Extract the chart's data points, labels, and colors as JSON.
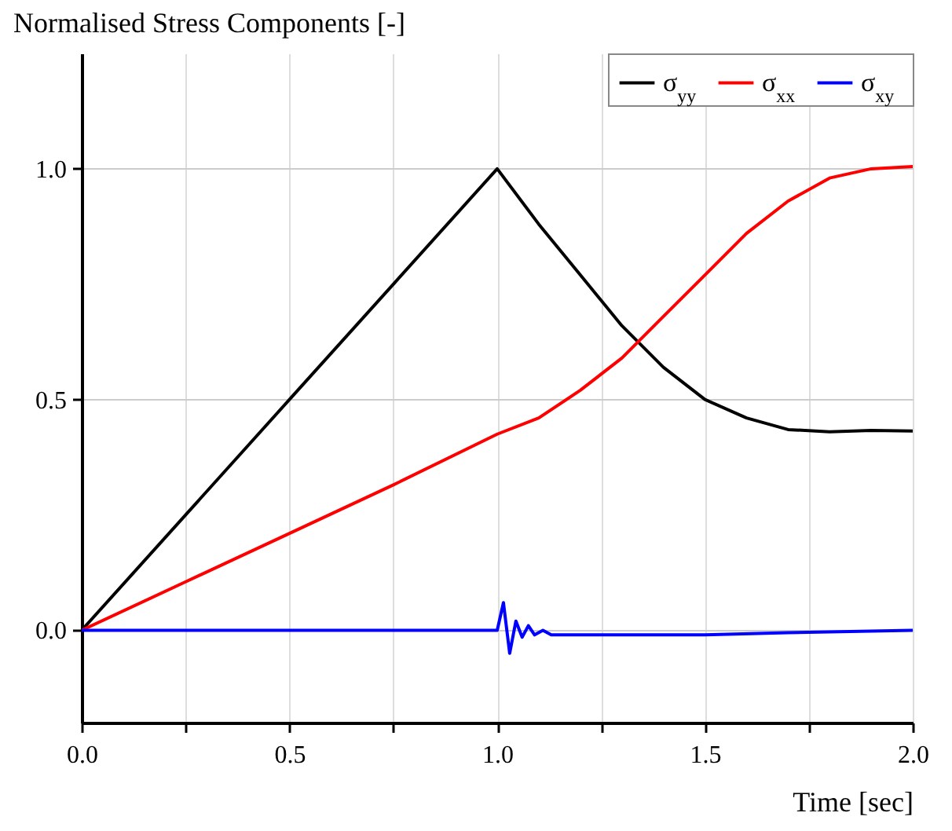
{
  "chart_data": {
    "type": "line",
    "xlabel": "Time [sec]",
    "ylabel": "Normalised Stress Components [-]",
    "xlim": [
      0,
      2
    ],
    "ylim": [
      -0.2,
      1.25
    ],
    "xticks": [
      {
        "value": 0,
        "label": "0.0"
      },
      {
        "value": 0.25,
        "label": null
      },
      {
        "value": 0.5,
        "label": "0.5"
      },
      {
        "value": 0.75,
        "label": null
      },
      {
        "value": 1,
        "label": "1.0"
      },
      {
        "value": 1.25,
        "label": null
      },
      {
        "value": 1.5,
        "label": "1.5"
      },
      {
        "value": 1.75,
        "label": null
      },
      {
        "value": 2,
        "label": "2.0"
      }
    ],
    "yticks": [
      {
        "value": 0,
        "label": "0.0"
      },
      {
        "value": 0.5,
        "label": "0.5"
      },
      {
        "value": 1,
        "label": "1.0"
      }
    ],
    "grid": true,
    "legend": "top right",
    "marker": "none",
    "line_style": "solid",
    "series": [
      {
        "name": "σ$_{yy}$",
        "color": "#000000",
        "x": [
          0,
          0.25,
          0.5,
          0.75,
          1.0,
          1.1,
          1.2,
          1.3,
          1.4,
          1.5,
          1.6,
          1.7,
          1.8,
          1.9,
          2.0
        ],
        "values": [
          0,
          0.25,
          0.5,
          0.75,
          1.0,
          0.88,
          0.77,
          0.66,
          0.57,
          0.5,
          0.46,
          0.435,
          0.43,
          0.433,
          0.432
        ]
      },
      {
        "name": "σ$_{xx}$",
        "color": "#ff0000",
        "x": [
          0,
          0.25,
          0.5,
          0.75,
          1.0,
          1.1,
          1.2,
          1.3,
          1.4,
          1.5,
          1.6,
          1.7,
          1.8,
          1.9,
          2.0
        ],
        "values": [
          0,
          0.105,
          0.21,
          0.315,
          0.425,
          0.46,
          0.52,
          0.59,
          0.68,
          0.77,
          0.86,
          0.93,
          0.98,
          1.0,
          1.005
        ]
      },
      {
        "name": "σ$_{xy}$",
        "color": "#0000ff",
        "x": [
          0,
          1.0,
          1.015,
          1.03,
          1.045,
          1.06,
          1.075,
          1.09,
          1.11,
          1.13,
          1.2,
          1.5,
          1.7,
          2.0
        ],
        "values": [
          0,
          0,
          0.06,
          -0.05,
          0.02,
          -0.015,
          0.01,
          -0.01,
          0,
          -0.01,
          -0.01,
          -0.01,
          -0.005,
          0
        ]
      }
    ]
  }
}
